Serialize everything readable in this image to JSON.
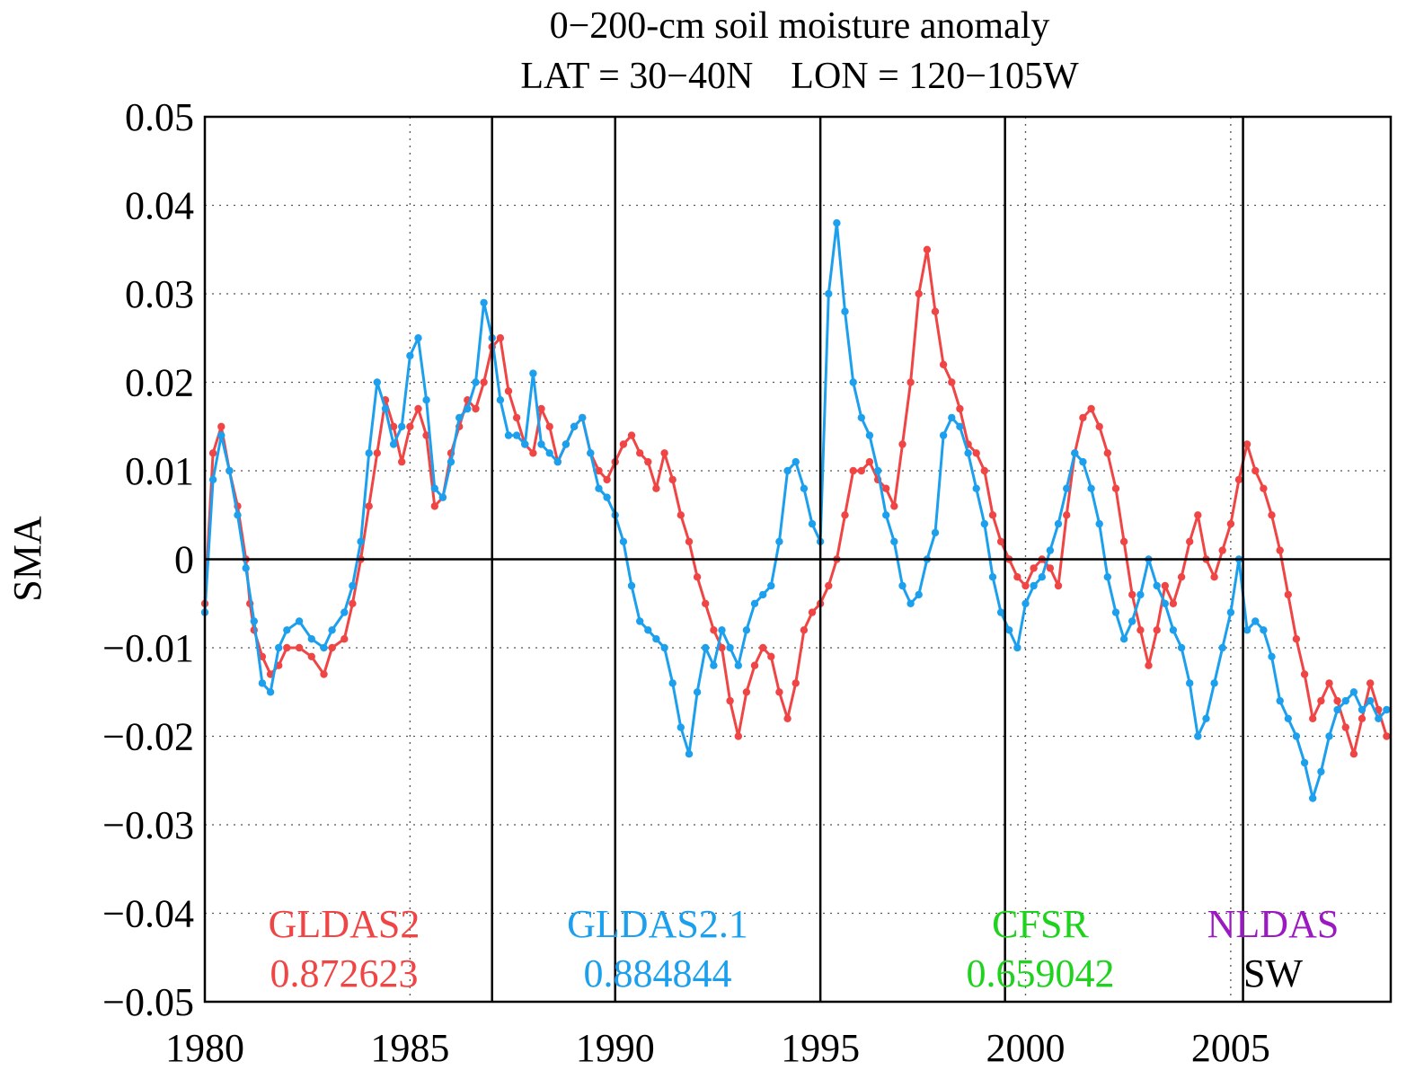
{
  "chart_data": {
    "type": "line",
    "title": "0−200-cm soil moisture anomaly",
    "subtitle": "LAT = 30−40N    LON = 120−105W",
    "xlabel": "",
    "ylabel": "SMA",
    "xlim": [
      1980,
      2008.9
    ],
    "ylim": [
      -0.05,
      0.05
    ],
    "x_ticks": [
      1980,
      1985,
      1990,
      1995,
      2000,
      2005
    ],
    "x_tick_labels": [
      "1980",
      "1985",
      "1990",
      "1995",
      "2000",
      "2005"
    ],
    "y_ticks": [
      -0.05,
      -0.04,
      -0.03,
      -0.02,
      -0.01,
      0,
      0.01,
      0.02,
      0.03,
      0.04,
      0.05
    ],
    "y_tick_labels": [
      "−0.05",
      "−0.04",
      "−0.03",
      "−0.02",
      "−0.01",
      "0",
      "0.01",
      "0.02",
      "0.03",
      "0.04",
      "0.05"
    ],
    "vertical_markers": [
      1987.0,
      1990.0,
      1995.0,
      1999.5,
      2005.3
    ],
    "grid": true,
    "series": [
      {
        "name": "GLDAS2",
        "label": "GLDAS2",
        "stat": "0.872623",
        "color": "#f04545",
        "points": [
          [
            1980.0,
            -0.005
          ],
          [
            1980.2,
            0.012
          ],
          [
            1980.4,
            0.015
          ],
          [
            1980.6,
            0.01
          ],
          [
            1980.8,
            0.006
          ],
          [
            1981.0,
            0.0
          ],
          [
            1981.1,
            -0.005
          ],
          [
            1981.2,
            -0.008
          ],
          [
            1981.4,
            -0.011
          ],
          [
            1981.6,
            -0.013
          ],
          [
            1981.8,
            -0.012
          ],
          [
            1982.0,
            -0.01
          ],
          [
            1982.3,
            -0.01
          ],
          [
            1982.6,
            -0.011
          ],
          [
            1982.9,
            -0.013
          ],
          [
            1983.1,
            -0.01
          ],
          [
            1983.4,
            -0.009
          ],
          [
            1983.6,
            -0.005
          ],
          [
            1983.8,
            0.0
          ],
          [
            1984.0,
            0.006
          ],
          [
            1984.2,
            0.012
          ],
          [
            1984.4,
            0.018
          ],
          [
            1984.6,
            0.015
          ],
          [
            1984.8,
            0.011
          ],
          [
            1985.0,
            0.015
          ],
          [
            1985.2,
            0.017
          ],
          [
            1985.4,
            0.014
          ],
          [
            1985.6,
            0.006
          ],
          [
            1985.8,
            0.007
          ],
          [
            1986.0,
            0.012
          ],
          [
            1986.2,
            0.015
          ],
          [
            1986.4,
            0.018
          ],
          [
            1986.6,
            0.017
          ],
          [
            1986.8,
            0.02
          ],
          [
            1987.0,
            0.024
          ],
          [
            1987.2,
            0.025
          ],
          [
            1987.4,
            0.019
          ],
          [
            1987.6,
            0.016
          ],
          [
            1987.8,
            0.013
          ],
          [
            1988.0,
            0.012
          ],
          [
            1988.2,
            0.017
          ],
          [
            1988.4,
            0.015
          ],
          [
            1988.6,
            0.011
          ],
          [
            1988.8,
            0.013
          ],
          [
            1989.0,
            0.015
          ],
          [
            1989.2,
            0.016
          ],
          [
            1989.4,
            0.012
          ],
          [
            1989.6,
            0.01
          ],
          [
            1989.8,
            0.009
          ],
          [
            1990.0,
            0.011
          ],
          [
            1990.2,
            0.013
          ],
          [
            1990.4,
            0.014
          ],
          [
            1990.6,
            0.012
          ],
          [
            1990.8,
            0.011
          ],
          [
            1991.0,
            0.008
          ],
          [
            1991.2,
            0.012
          ],
          [
            1991.4,
            0.009
          ],
          [
            1991.6,
            0.005
          ],
          [
            1991.8,
            0.002
          ],
          [
            1992.0,
            -0.002
          ],
          [
            1992.2,
            -0.005
          ],
          [
            1992.4,
            -0.008
          ],
          [
            1992.6,
            -0.01
          ],
          [
            1992.8,
            -0.016
          ],
          [
            1993.0,
            -0.02
          ],
          [
            1993.2,
            -0.015
          ],
          [
            1993.4,
            -0.012
          ],
          [
            1993.6,
            -0.01
          ],
          [
            1993.8,
            -0.011
          ],
          [
            1994.0,
            -0.015
          ],
          [
            1994.2,
            -0.018
          ],
          [
            1994.4,
            -0.014
          ],
          [
            1994.6,
            -0.008
          ],
          [
            1994.8,
            -0.006
          ],
          [
            1995.0,
            -0.005
          ],
          [
            1995.2,
            -0.003
          ],
          [
            1995.4,
            0.0
          ],
          [
            1995.6,
            0.005
          ],
          [
            1995.8,
            0.01
          ],
          [
            1996.0,
            0.01
          ],
          [
            1996.2,
            0.011
          ],
          [
            1996.4,
            0.009
          ],
          [
            1996.6,
            0.008
          ],
          [
            1996.8,
            0.006
          ],
          [
            1997.0,
            0.013
          ],
          [
            1997.2,
            0.02
          ],
          [
            1997.4,
            0.03
          ],
          [
            1997.6,
            0.035
          ],
          [
            1997.8,
            0.028
          ],
          [
            1998.0,
            0.022
          ],
          [
            1998.2,
            0.02
          ],
          [
            1998.4,
            0.017
          ],
          [
            1998.6,
            0.013
          ],
          [
            1998.8,
            0.012
          ],
          [
            1999.0,
            0.01
          ],
          [
            1999.2,
            0.005
          ],
          [
            1999.4,
            0.002
          ],
          [
            1999.6,
            0.0
          ],
          [
            1999.8,
            -0.002
          ],
          [
            2000.0,
            -0.003
          ],
          [
            2000.2,
            -0.001
          ],
          [
            2000.4,
            0.0
          ],
          [
            2000.6,
            -0.001
          ],
          [
            2000.8,
            -0.003
          ],
          [
            2001.0,
            0.005
          ],
          [
            2001.2,
            0.012
          ],
          [
            2001.4,
            0.016
          ],
          [
            2001.6,
            0.017
          ],
          [
            2001.8,
            0.015
          ],
          [
            2002.0,
            0.012
          ],
          [
            2002.2,
            0.008
          ],
          [
            2002.4,
            0.002
          ],
          [
            2002.6,
            -0.004
          ],
          [
            2002.8,
            -0.008
          ],
          [
            2003.0,
            -0.012
          ],
          [
            2003.2,
            -0.008
          ],
          [
            2003.4,
            -0.003
          ],
          [
            2003.6,
            -0.005
          ],
          [
            2003.8,
            -0.002
          ],
          [
            2004.0,
            0.002
          ],
          [
            2004.2,
            0.005
          ],
          [
            2004.4,
            0.0
          ],
          [
            2004.6,
            -0.002
          ],
          [
            2004.8,
            0.001
          ],
          [
            2005.0,
            0.004
          ],
          [
            2005.2,
            0.009
          ],
          [
            2005.4,
            0.013
          ],
          [
            2005.6,
            0.01
          ],
          [
            2005.8,
            0.008
          ],
          [
            2006.0,
            0.005
          ],
          [
            2006.2,
            0.001
          ],
          [
            2006.4,
            -0.004
          ],
          [
            2006.6,
            -0.009
          ],
          [
            2006.8,
            -0.013
          ],
          [
            2007.0,
            -0.018
          ],
          [
            2007.2,
            -0.016
          ],
          [
            2007.4,
            -0.014
          ],
          [
            2007.6,
            -0.016
          ],
          [
            2007.8,
            -0.019
          ],
          [
            2008.0,
            -0.022
          ],
          [
            2008.2,
            -0.018
          ],
          [
            2008.4,
            -0.014
          ],
          [
            2008.6,
            -0.017
          ],
          [
            2008.8,
            -0.02
          ]
        ]
      },
      {
        "name": "GLDAS2.1",
        "label": "GLDAS2.1",
        "stat": "0.884844",
        "color": "#1ca0ee",
        "points": [
          [
            1980.0,
            -0.006
          ],
          [
            1980.2,
            0.009
          ],
          [
            1980.4,
            0.014
          ],
          [
            1980.6,
            0.01
          ],
          [
            1980.8,
            0.005
          ],
          [
            1981.0,
            -0.001
          ],
          [
            1981.2,
            -0.007
          ],
          [
            1981.4,
            -0.014
          ],
          [
            1981.6,
            -0.015
          ],
          [
            1981.8,
            -0.01
          ],
          [
            1982.0,
            -0.008
          ],
          [
            1982.3,
            -0.007
          ],
          [
            1982.6,
            -0.009
          ],
          [
            1982.9,
            -0.01
          ],
          [
            1983.1,
            -0.008
          ],
          [
            1983.4,
            -0.006
          ],
          [
            1983.6,
            -0.003
          ],
          [
            1983.8,
            0.002
          ],
          [
            1984.0,
            0.012
          ],
          [
            1984.2,
            0.02
          ],
          [
            1984.4,
            0.017
          ],
          [
            1984.6,
            0.013
          ],
          [
            1984.8,
            0.015
          ],
          [
            1985.0,
            0.023
          ],
          [
            1985.2,
            0.025
          ],
          [
            1985.4,
            0.018
          ],
          [
            1985.6,
            0.008
          ],
          [
            1985.8,
            0.007
          ],
          [
            1986.0,
            0.011
          ],
          [
            1986.2,
            0.016
          ],
          [
            1986.4,
            0.017
          ],
          [
            1986.6,
            0.02
          ],
          [
            1986.8,
            0.029
          ],
          [
            1987.0,
            0.025
          ],
          [
            1987.2,
            0.018
          ],
          [
            1987.4,
            0.014
          ],
          [
            1987.6,
            0.014
          ],
          [
            1987.8,
            0.013
          ],
          [
            1988.0,
            0.021
          ],
          [
            1988.2,
            0.013
          ],
          [
            1988.4,
            0.012
          ],
          [
            1988.6,
            0.011
          ],
          [
            1988.8,
            0.013
          ],
          [
            1989.0,
            0.015
          ],
          [
            1989.2,
            0.016
          ],
          [
            1989.4,
            0.012
          ],
          [
            1989.6,
            0.008
          ],
          [
            1989.8,
            0.007
          ],
          [
            1990.0,
            0.005
          ],
          [
            1990.2,
            0.002
          ],
          [
            1990.4,
            -0.003
          ],
          [
            1990.6,
            -0.007
          ],
          [
            1990.8,
            -0.008
          ],
          [
            1991.0,
            -0.009
          ],
          [
            1991.2,
            -0.01
          ],
          [
            1991.4,
            -0.014
          ],
          [
            1991.6,
            -0.019
          ],
          [
            1991.8,
            -0.022
          ],
          [
            1992.0,
            -0.015
          ],
          [
            1992.2,
            -0.01
          ],
          [
            1992.4,
            -0.012
          ],
          [
            1992.6,
            -0.008
          ],
          [
            1992.8,
            -0.01
          ],
          [
            1993.0,
            -0.012
          ],
          [
            1993.2,
            -0.008
          ],
          [
            1993.4,
            -0.005
          ],
          [
            1993.6,
            -0.004
          ],
          [
            1993.8,
            -0.003
          ],
          [
            1994.0,
            0.002
          ],
          [
            1994.2,
            0.01
          ],
          [
            1994.4,
            0.011
          ],
          [
            1994.6,
            0.008
          ],
          [
            1994.8,
            0.004
          ],
          [
            1995.0,
            0.002
          ],
          [
            1995.2,
            0.03
          ],
          [
            1995.4,
            0.038
          ],
          [
            1995.6,
            0.028
          ],
          [
            1995.8,
            0.02
          ],
          [
            1996.0,
            0.016
          ],
          [
            1996.2,
            0.014
          ],
          [
            1996.4,
            0.01
          ],
          [
            1996.6,
            0.005
          ],
          [
            1996.8,
            0.002
          ],
          [
            1997.0,
            -0.003
          ],
          [
            1997.2,
            -0.005
          ],
          [
            1997.4,
            -0.004
          ],
          [
            1997.6,
            0.0
          ],
          [
            1997.8,
            0.003
          ],
          [
            1998.0,
            0.014
          ],
          [
            1998.2,
            0.016
          ],
          [
            1998.4,
            0.015
          ],
          [
            1998.6,
            0.012
          ],
          [
            1998.8,
            0.008
          ],
          [
            1999.0,
            0.004
          ],
          [
            1999.2,
            -0.002
          ],
          [
            1999.4,
            -0.006
          ],
          [
            1999.6,
            -0.008
          ],
          [
            1999.8,
            -0.01
          ],
          [
            2000.0,
            -0.005
          ],
          [
            2000.2,
            -0.003
          ],
          [
            2000.4,
            -0.002
          ],
          [
            2000.6,
            0.001
          ],
          [
            2000.8,
            0.004
          ],
          [
            2001.0,
            0.008
          ],
          [
            2001.2,
            0.012
          ],
          [
            2001.4,
            0.011
          ],
          [
            2001.6,
            0.008
          ],
          [
            2001.8,
            0.004
          ],
          [
            2002.0,
            -0.002
          ],
          [
            2002.2,
            -0.006
          ],
          [
            2002.4,
            -0.009
          ],
          [
            2002.6,
            -0.007
          ],
          [
            2002.8,
            -0.004
          ],
          [
            2003.0,
            0.0
          ],
          [
            2003.2,
            -0.003
          ],
          [
            2003.4,
            -0.005
          ],
          [
            2003.6,
            -0.008
          ],
          [
            2003.8,
            -0.01
          ],
          [
            2004.0,
            -0.014
          ],
          [
            2004.2,
            -0.02
          ],
          [
            2004.4,
            -0.018
          ],
          [
            2004.6,
            -0.014
          ],
          [
            2004.8,
            -0.01
          ],
          [
            2005.0,
            -0.006
          ],
          [
            2005.2,
            0.0
          ],
          [
            2005.4,
            -0.008
          ],
          [
            2005.6,
            -0.007
          ],
          [
            2005.8,
            -0.008
          ],
          [
            2006.0,
            -0.011
          ],
          [
            2006.2,
            -0.016
          ],
          [
            2006.4,
            -0.018
          ],
          [
            2006.6,
            -0.02
          ],
          [
            2006.8,
            -0.023
          ],
          [
            2007.0,
            -0.027
          ],
          [
            2007.2,
            -0.024
          ],
          [
            2007.4,
            -0.02
          ],
          [
            2007.6,
            -0.017
          ],
          [
            2007.8,
            -0.016
          ],
          [
            2008.0,
            -0.015
          ],
          [
            2008.2,
            -0.017
          ],
          [
            2008.4,
            -0.016
          ],
          [
            2008.6,
            -0.018
          ],
          [
            2008.8,
            -0.017
          ]
        ]
      }
    ]
  },
  "labels": {
    "gldas2_name": "GLDAS2",
    "gldas2_val": "0.872623",
    "gldas21_name": "GLDAS2.1",
    "gldas21_val": "0.884844",
    "cfsr_name": "CFSR",
    "cfsr_val": "0.659042",
    "nldas_name": "NLDAS",
    "region": "SW"
  },
  "colors": {
    "gldas2": "#f04545",
    "gldas21": "#1ca0ee",
    "cfsr": "#1ed21e",
    "nldas": "#9b19c1",
    "region": "#000000"
  }
}
